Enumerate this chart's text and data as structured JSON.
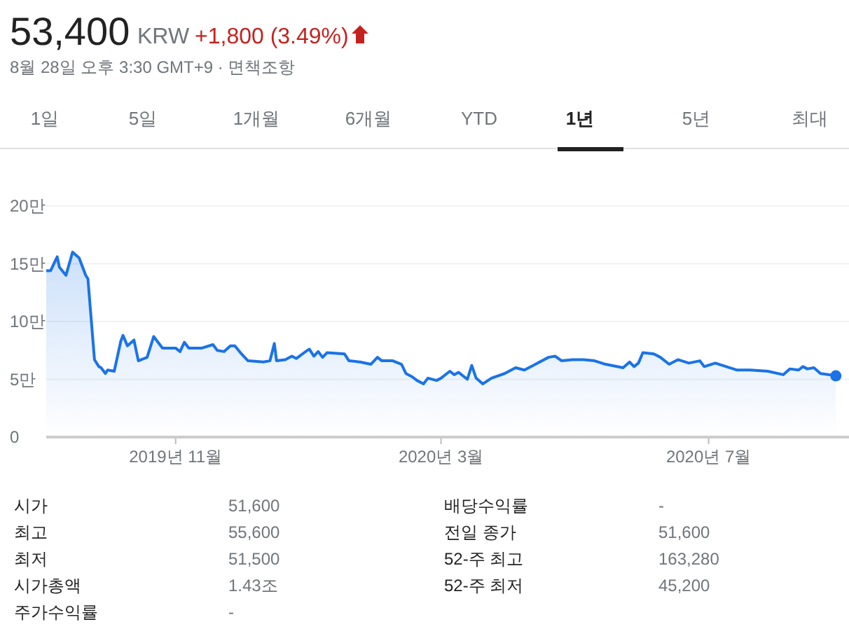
{
  "chart_data": {
    "type": "area",
    "title": "53,400",
    "subtitle": "8월 28일 오후 3:30 GMT+9 · 면책조항",
    "annotations": [
      "KRW",
      "+1,800 (3.49%)",
      "1일",
      "5일",
      "1개월",
      "6개월",
      "YTD",
      "1년",
      "5년",
      "최대",
      "시가",
      "51,600",
      "최고",
      "55,600",
      "최저",
      "51,500",
      "시가총액",
      "1.43조",
      "주가수익률",
      "-",
      "배당수익률",
      "-",
      "전일 종가",
      "51,600",
      "52-주 최고",
      "163,280",
      "52-주 최저",
      "45,200"
    ],
    "x": [
      "2019-09-03",
      "2019-09-05",
      "2019-09-08",
      "2019-09-09",
      "2019-09-12",
      "2019-09-15",
      "2019-09-18",
      "2019-09-21",
      "2019-09-22",
      "2019-09-25",
      "2019-09-27",
      "2019-09-28",
      "2019-09-30",
      "2019-10-01",
      "2019-10-04",
      "2019-10-07",
      "2019-10-08",
      "2019-10-10",
      "2019-10-13",
      "2019-10-15",
      "2019-10-19",
      "2019-10-22",
      "2019-10-26",
      "2019-10-29",
      "2019-11-01",
      "2019-11-03",
      "2019-11-05",
      "2019-11-07",
      "2019-11-13",
      "2019-11-18",
      "2019-11-20",
      "2019-11-23",
      "2019-11-26",
      "2019-11-28",
      "2019-12-01",
      "2019-12-04",
      "2019-12-11",
      "2019-12-14",
      "2019-12-16",
      "2019-12-17",
      "2019-12-21",
      "2019-12-24",
      "2019-12-26",
      "2019-12-31",
      "2020-01-01",
      "2020-01-03",
      "2020-01-05",
      "2020-01-07",
      "2020-01-09",
      "2020-01-17",
      "2020-01-19",
      "2020-01-24",
      "2020-01-29",
      "2020-02-01",
      "2020-02-03",
      "2020-02-08",
      "2020-02-12",
      "2020-02-14",
      "2020-02-17",
      "2020-02-19",
      "2020-02-22",
      "2020-02-24",
      "2020-02-28",
      "2020-03-01",
      "2020-03-05",
      "2020-03-07",
      "2020-03-09",
      "2020-03-13",
      "2020-03-15",
      "2020-03-17",
      "2020-03-20",
      "2020-03-24",
      "2020-03-30",
      "2020-04-04",
      "2020-04-08",
      "2020-04-12",
      "2020-04-19",
      "2020-04-22",
      "2020-04-25",
      "2020-04-30",
      "2020-05-05",
      "2020-05-10",
      "2020-05-15",
      "2020-05-23",
      "2020-05-26",
      "2020-05-28",
      "2020-05-30",
      "2020-06-01",
      "2020-06-06",
      "2020-06-09",
      "2020-06-13",
      "2020-06-17",
      "2020-06-22",
      "2020-06-27",
      "2020-06-29",
      "2020-07-04",
      "2020-07-09",
      "2020-07-14",
      "2020-07-20",
      "2020-07-28",
      "2020-08-04",
      "2020-08-07",
      "2020-08-11",
      "2020-08-13",
      "2020-08-15",
      "2020-08-18",
      "2020-08-21",
      "2020-08-25",
      "2020-08-28"
    ],
    "values": [
      14.4,
      14.4,
      15.6,
      14.7,
      14.0,
      16.0,
      15.5,
      14.0,
      13.7,
      6.7,
      6.1,
      6.0,
      5.5,
      5.8,
      5.7,
      8.3,
      8.8,
      7.9,
      8.4,
      6.6,
      6.9,
      8.7,
      7.7,
      7.7,
      7.7,
      7.4,
      8.2,
      7.7,
      7.7,
      8.0,
      7.5,
      7.4,
      7.9,
      7.9,
      7.2,
      6.6,
      6.5,
      6.6,
      8.1,
      6.6,
      6.7,
      7.0,
      6.8,
      7.5,
      7.6,
      7.0,
      7.4,
      6.9,
      7.3,
      7.2,
      6.6,
      6.5,
      6.3,
      6.9,
      6.6,
      6.6,
      6.3,
      5.5,
      5.2,
      4.9,
      4.6,
      5.1,
      4.9,
      5.1,
      5.7,
      5.4,
      5.6,
      5.0,
      6.2,
      5.1,
      4.6,
      5.1,
      5.5,
      6.0,
      5.8,
      6.2,
      6.9,
      7.0,
      6.6,
      6.7,
      6.7,
      6.6,
      6.3,
      6.0,
      6.5,
      6.1,
      6.4,
      7.3,
      7.2,
      6.9,
      6.3,
      6.7,
      6.4,
      6.6,
      6.1,
      6.4,
      6.1,
      5.8,
      5.8,
      5.7,
      5.4,
      5.9,
      5.8,
      6.1,
      5.9,
      6.0,
      5.5,
      5.4,
      5.3
    ],
    "color": "#1a73e8",
    "xlim": [
      "2019-09-03",
      "2020-09-03"
    ],
    "xticks": [
      {
        "value": "2019-11-01",
        "label": "2019년 11월"
      },
      {
        "value": "2020-03-01",
        "label": "2020년 3월"
      },
      {
        "value": "2020-07-01",
        "label": "2020년 7월"
      }
    ],
    "ylim": [
      0,
      20
    ],
    "yticks": [
      0,
      {
        "value": 5,
        "label": "5만"
      },
      {
        "value": 10,
        "label": "10만"
      },
      {
        "value": 15,
        "label": "15만"
      },
      {
        "value": 20,
        "label": "20만"
      }
    ],
    "grid": "y"
  }
}
